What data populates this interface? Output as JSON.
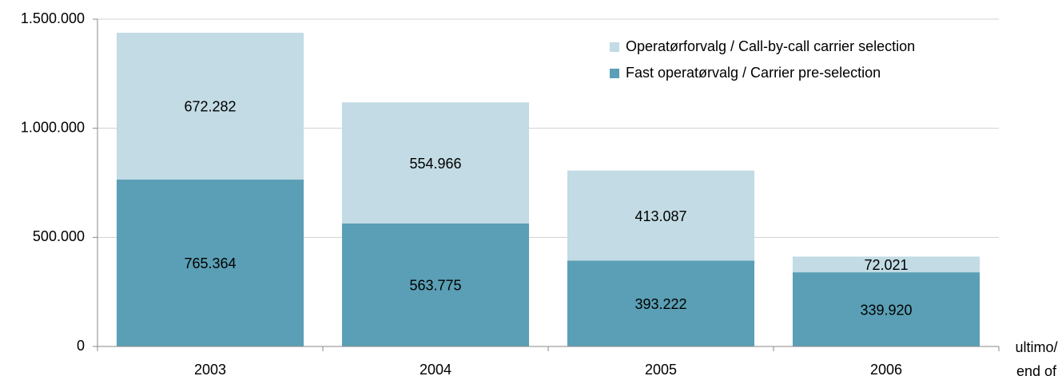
{
  "chart_data": {
    "type": "stacked_bar",
    "categories": [
      "2003",
      "2004",
      "2005",
      "2006"
    ],
    "series": [
      {
        "name": "Fast operatørvalg /  Carrier pre-selection",
        "color": "#5a9fb5",
        "values": [
          765364,
          563775,
          393222,
          339920
        ],
        "value_labels": [
          "765.364",
          "563.775",
          "393.222",
          "339.920"
        ]
      },
      {
        "name": "Operatørforvalg / Call-by-call carrier selection",
        "color": "#c2dbe4",
        "values": [
          672282,
          554966,
          413087,
          72021
        ],
        "value_labels": [
          "672.282",
          "554.966",
          "413.087",
          "72.021"
        ]
      }
    ],
    "x_label": [
      "ultimo/",
      "end of"
    ],
    "ylim": [
      0,
      1500000
    ],
    "yticks": [
      0,
      {
        "value": 500000,
        "label": "500.000"
      },
      {
        "value": 1000000,
        "label": "1.000.000"
      },
      {
        "value": 1500000,
        "label": "1.500.000"
      }
    ],
    "grid": true,
    "legend": "top-right"
  }
}
